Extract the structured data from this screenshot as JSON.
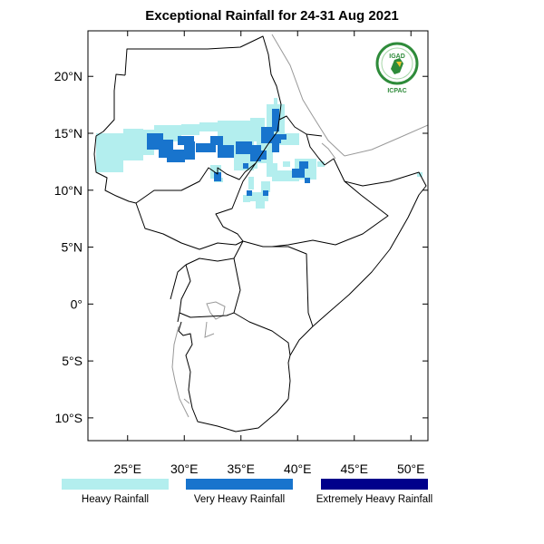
{
  "title": "Exceptional Rainfall for 24-31 Aug 2021",
  "axes": {
    "lat_ticks": [
      {
        "lat": 20,
        "label": "20°N"
      },
      {
        "lat": 15,
        "label": "15°N"
      },
      {
        "lat": 10,
        "label": "10°N"
      },
      {
        "lat": 5,
        "label": "5°N"
      },
      {
        "lat": 0,
        "label": "0°"
      },
      {
        "lat": -5,
        "label": "5°S"
      },
      {
        "lat": -10,
        "label": "10°S"
      }
    ],
    "lon_ticks": [
      {
        "lon": 25,
        "label": "25°E"
      },
      {
        "lon": 30,
        "label": "30°E"
      },
      {
        "lon": 35,
        "label": "35°E"
      },
      {
        "lon": 40,
        "label": "40°E"
      },
      {
        "lon": 45,
        "label": "45°E"
      },
      {
        "lon": 50,
        "label": "50°E"
      }
    ],
    "lon_range": [
      21.5,
      51.5
    ],
    "lat_range": [
      -12,
      24
    ]
  },
  "logo": {
    "top_text": "IGAD",
    "bottom_text": "ICPAC",
    "color": "#2e8b3a"
  },
  "legend": [
    {
      "label": "Heavy Rainfall",
      "color": "#b3eeee"
    },
    {
      "label": "Very Heavy Rainfall",
      "color": "#1874cd"
    },
    {
      "label": "Extremely Heavy Rainfall",
      "color": "#00008b"
    }
  ]
}
